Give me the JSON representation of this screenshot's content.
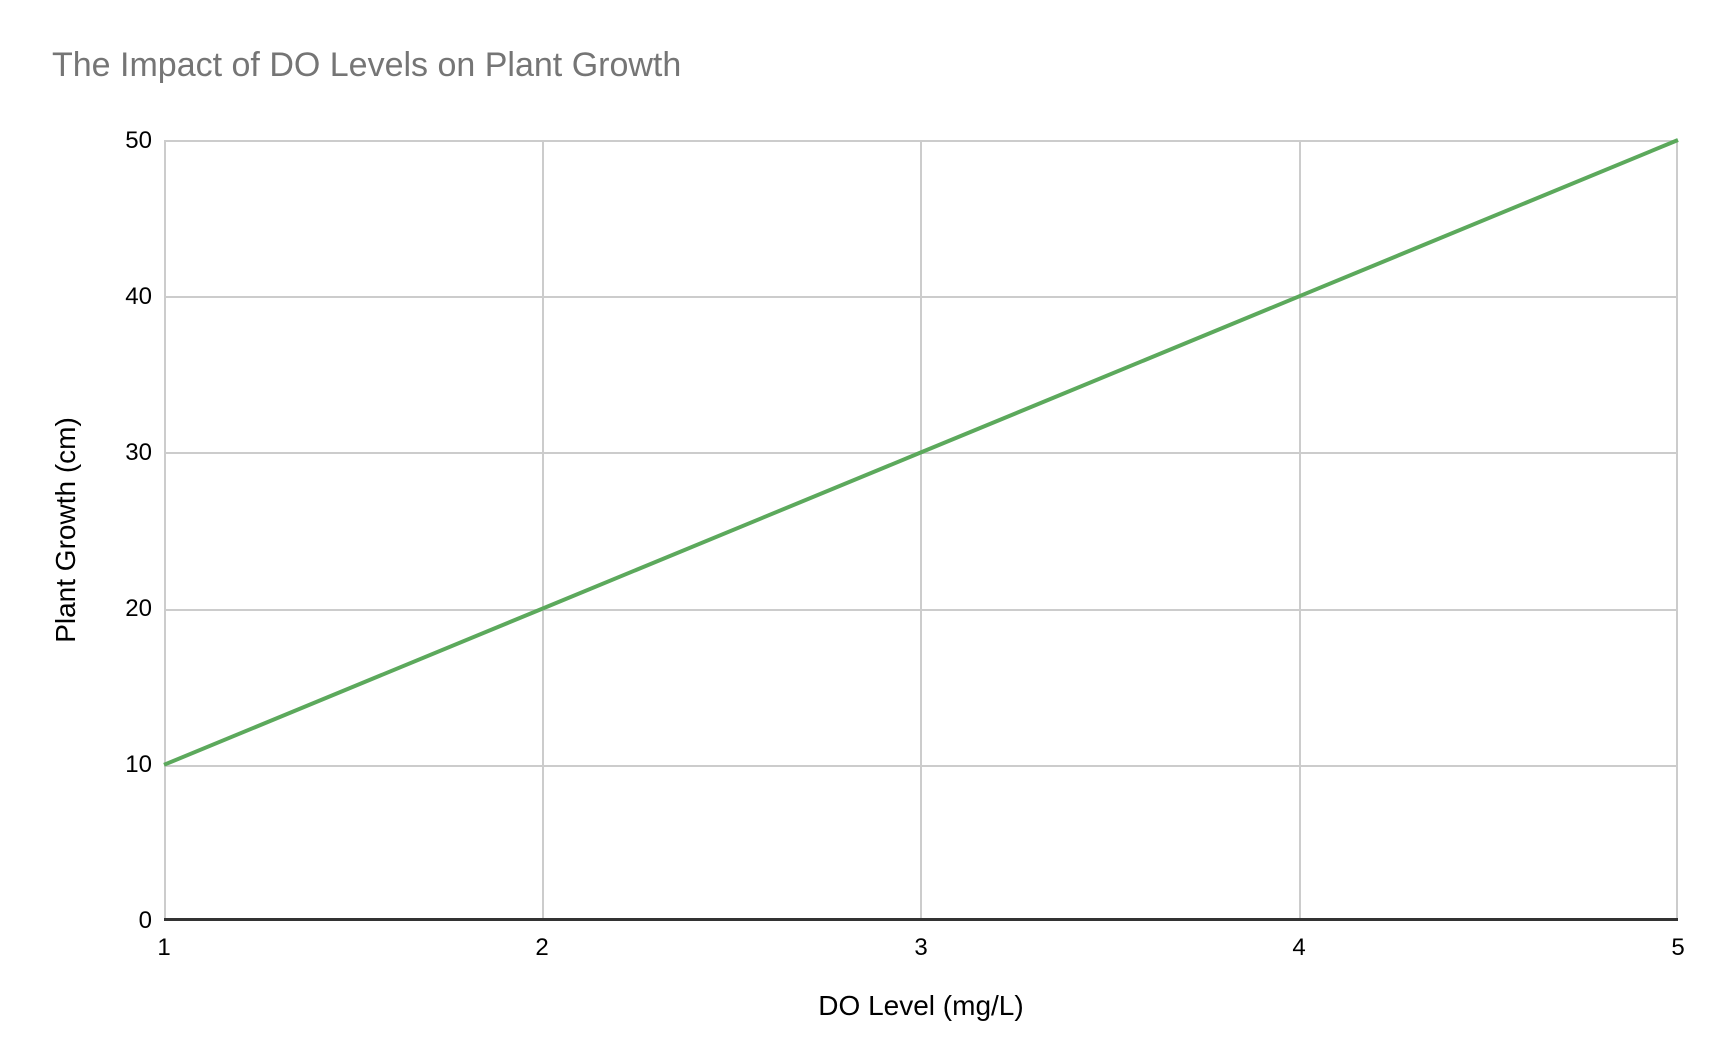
{
  "chart_data": {
    "type": "line",
    "title": "The Impact of DO Levels on Plant Growth",
    "title_color": "#757575",
    "xlabel": "DO Level (mg/L)",
    "ylabel": "Plant Growth (cm)",
    "x": [
      1,
      2,
      3,
      4,
      5
    ],
    "series": [
      {
        "name": "Plant Growth (cm)",
        "values": [
          10,
          20,
          30,
          40,
          50
        ],
        "color": "#5CA95C",
        "line_width": 4
      }
    ],
    "xlim": [
      1,
      5
    ],
    "ylim": [
      0,
      50
    ],
    "x_ticks": [
      "1",
      "2",
      "3",
      "4",
      "5"
    ],
    "y_ticks": [
      "50",
      "40",
      "30",
      "20",
      "10",
      "0"
    ],
    "grid": true,
    "gridline_color": "#cccccc",
    "axis_line_color": "#333333",
    "legend": "none",
    "markers": false
  }
}
